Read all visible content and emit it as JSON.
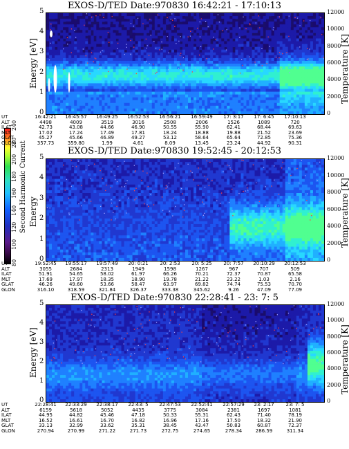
{
  "colorbar": {
    "label": "Second Harmonic Current",
    "ticks": [
      "80",
      "100",
      "120",
      "140",
      "160",
      "180",
      "200",
      "220",
      "240"
    ]
  },
  "chart_data": [
    {
      "type": "heatmap",
      "title": "EXOS-D/TED   Date:970830  16:42:21 - 17:10:13",
      "ylabel": "Energy [eV]",
      "y2label": "Temperature [K]",
      "ylim": [
        0,
        5
      ],
      "y2lim": [
        0,
        12000
      ],
      "yticks": [
        "0",
        "1",
        "2",
        "3",
        "4",
        "5"
      ],
      "y2ticks": [
        "0",
        "2000",
        "4000",
        "6000",
        "8000",
        "10000",
        "12000"
      ],
      "table": {
        "rows": [
          "UT",
          "ALT",
          "ILAT",
          "MLT",
          "GLAT",
          "GLON"
        ],
        "columns": [
          [
            "16:42:21",
            "4498",
            "42.73",
            "17.02",
            "45.27",
            "357.73"
          ],
          [
            "16:45:57",
            "4009",
            "43.08",
            "17.24",
            "45.66",
            "359.80"
          ],
          [
            "16:49:25",
            "3519",
            "44.66",
            "17.49",
            "46.89",
            "1.99"
          ],
          [
            "16:52:53",
            "3016",
            "46.90",
            "17.81",
            "49.27",
            "4.61"
          ],
          [
            "16:56:21",
            "2508",
            "50.55",
            "18.24",
            "53.12",
            "8.09"
          ],
          [
            "16:59:49",
            "2006",
            "55.90",
            "18.88",
            "58.64",
            "13.45"
          ],
          [
            "17: 3:17",
            "1526",
            "62.41",
            "19.88",
            "65.64",
            "23.24"
          ],
          [
            "17: 6:45",
            "1089",
            "68.44",
            "21.52",
            "72.85",
            "44.92"
          ],
          [
            "17:10:13",
            "720",
            "69.63",
            "23.69",
            "75.36",
            "90.31"
          ]
        ]
      }
    },
    {
      "type": "heatmap",
      "title": "EXOS-D/TED   Date:970830  19:52:45 - 20:12:53",
      "ylabel": "Energy",
      "y2label": "Temperature [K]",
      "ylim": [
        0,
        5
      ],
      "y2lim": [
        0,
        12000
      ],
      "yticks": [
        "0",
        "1",
        "2",
        "3",
        "4",
        "5"
      ],
      "y2ticks": [
        "0",
        "2000",
        "4000",
        "6000",
        "8000",
        "10000",
        "12000"
      ],
      "table": {
        "rows": [
          "UT",
          "ALT",
          "ILAT",
          "MLT",
          "GLAT",
          "GLON"
        ],
        "columns": [
          [
            "19:52:45",
            "3055",
            "51.91",
            "17.69",
            "46.26",
            "316.10"
          ],
          [
            "19:55:17",
            "2684",
            "54.65",
            "17.97",
            "49.60",
            "318.59"
          ],
          [
            "19:57:49",
            "2313",
            "58.02",
            "18.35",
            "53.66",
            "321.84"
          ],
          [
            "20: 0:21",
            "1949",
            "61.97",
            "18.90",
            "58.47",
            "326.37"
          ],
          [
            "20: 2:53",
            "1598",
            "66.26",
            "19.78",
            "63.97",
            "333.38"
          ],
          [
            "20: 5:25",
            "1267",
            "70.21",
            "21.22",
            "69.82",
            "345.62"
          ],
          [
            "20: 7:57",
            "967",
            "72.37",
            "23.22",
            "74.74",
            "9.26"
          ],
          [
            "20:10:29",
            "707",
            "70.87",
            "1.03",
            "75.53",
            "47.09"
          ],
          [
            "20:12:53",
            "509",
            "65.58",
            "2.16",
            "70.70",
            "77.09"
          ]
        ]
      }
    },
    {
      "type": "heatmap",
      "title": "EXOS-D/TED   Date:970830  22:28:41 - 23: 7: 5",
      "ylabel": "Energy [eV]",
      "y2label": "Temperature [K]",
      "ylim": [
        0,
        5
      ],
      "y2lim": [
        0,
        12000
      ],
      "yticks": [
        "0",
        "1",
        "2",
        "3",
        "4",
        "5"
      ],
      "y2ticks": [
        "0",
        "2000",
        "4000",
        "6000",
        "8000",
        "10000",
        "12000"
      ],
      "table": {
        "rows": [
          "UT",
          "ALT",
          "ILAT",
          "MLT",
          "GLAT",
          "GLON"
        ],
        "columns": [
          [
            "22:28:41",
            "6159",
            "44.95",
            "16.52",
            "33.13",
            "270.94"
          ],
          [
            "22:33:29",
            "5618",
            "44.82",
            "16.61",
            "32.99",
            "270.99"
          ],
          [
            "22:38:17",
            "5052",
            "45.46",
            "16.70",
            "33.62",
            "271.22"
          ],
          [
            "22:43: 5",
            "4435",
            "47.18",
            "16.82",
            "35.31",
            "271.73"
          ],
          [
            "22:47:53",
            "3775",
            "50.33",
            "16.96",
            "38.45",
            "272.75"
          ],
          [
            "22:52:41",
            "3084",
            "55.31",
            "17.16",
            "43.47",
            "274.65"
          ],
          [
            "22:57:29",
            "2381",
            "62.43",
            "17.50",
            "50.83",
            "278.34"
          ],
          [
            "23: 2:17",
            "1697",
            "71.40",
            "18.32",
            "60.87",
            "286.59"
          ],
          [
            "23: 7: 5",
            "1081",
            "78.19",
            "21.90",
            "72.37",
            "311.34"
          ]
        ]
      }
    }
  ]
}
